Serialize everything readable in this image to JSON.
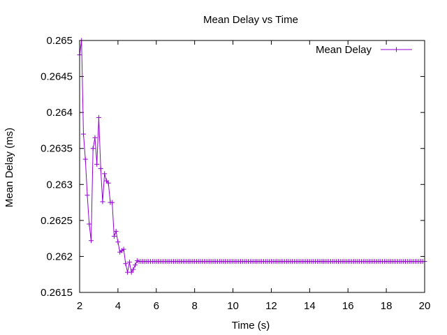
{
  "chart_data": {
    "type": "line",
    "title": "Mean Delay vs Time",
    "xlabel": "Time (s)",
    "ylabel": "Mean Delay (ms)",
    "xlim": [
      2,
      20
    ],
    "ylim": [
      0.2615,
      0.265
    ],
    "x_ticks": [
      {
        "value": 2,
        "label": "2"
      },
      {
        "value": 4,
        "label": "4"
      },
      {
        "value": 6,
        "label": "6"
      },
      {
        "value": 8,
        "label": "8"
      },
      {
        "value": 10,
        "label": "10"
      },
      {
        "value": 12,
        "label": "12"
      },
      {
        "value": 14,
        "label": "14"
      },
      {
        "value": 16,
        "label": "16"
      },
      {
        "value": 18,
        "label": "18"
      },
      {
        "value": 20,
        "label": "20"
      }
    ],
    "y_ticks": [
      {
        "value": 0.2615,
        "label": "0.2615"
      },
      {
        "value": 0.262,
        "label": "0.262"
      },
      {
        "value": 0.2625,
        "label": "0.2625"
      },
      {
        "value": 0.263,
        "label": "0.263"
      },
      {
        "value": 0.2635,
        "label": "0.2635"
      },
      {
        "value": 0.264,
        "label": "0.264"
      },
      {
        "value": 0.2645,
        "label": "0.2645"
      },
      {
        "value": 0.265,
        "label": "0.265"
      }
    ],
    "grid": false,
    "legend": {
      "position": "top-right"
    },
    "series": [
      {
        "name": "Mean Delay",
        "color": "#9400d3",
        "marker": "plus",
        "x": [
          2.0,
          2.1,
          2.2,
          2.3,
          2.4,
          2.5,
          2.6,
          2.7,
          2.8,
          2.9,
          3.0,
          3.1,
          3.2,
          3.3,
          3.4,
          3.5,
          3.6,
          3.7,
          3.8,
          3.9,
          4.0,
          4.1,
          4.2,
          4.3,
          4.4,
          4.5,
          4.6,
          4.7,
          4.8,
          4.9,
          5.0
        ],
        "y": [
          0.2648,
          0.265,
          0.2637,
          0.26335,
          0.26285,
          0.26245,
          0.26222,
          0.2635,
          0.26365,
          0.26328,
          0.26393,
          0.26322,
          0.26276,
          0.26315,
          0.26305,
          0.26302,
          0.26275,
          0.26275,
          0.26228,
          0.26235,
          0.2622,
          0.26206,
          0.26208,
          0.2621,
          0.2619,
          0.26178,
          0.26192,
          0.26178,
          0.26182,
          0.26188,
          0.26194
        ],
        "tail": {
          "x_start": 5.1,
          "x_end": 20.0,
          "step": 0.1,
          "value": 0.26193
        }
      }
    ]
  }
}
